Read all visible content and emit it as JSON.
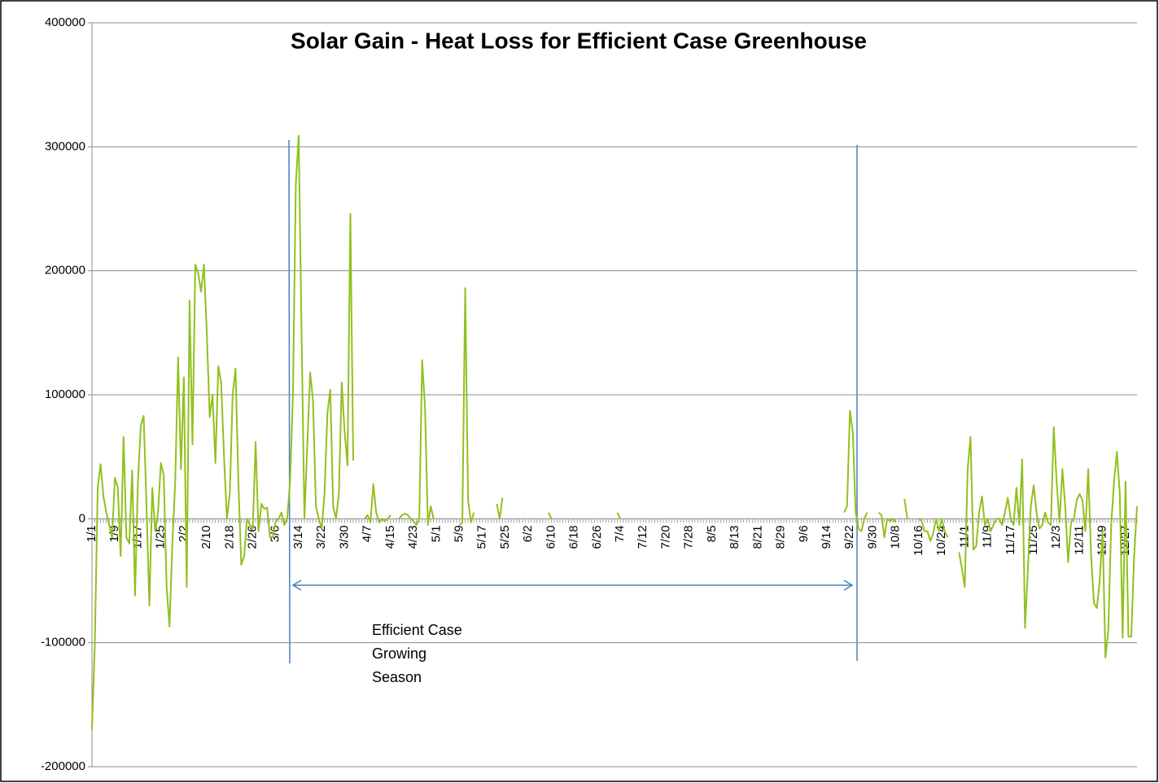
{
  "chart_data": {
    "type": "line",
    "title": "Solar Gain - Heat Loss for Efficient Case Greenhouse",
    "annotations": [
      "Efficient Case",
      "Growing",
      "Season"
    ],
    "categories": [
      "1/1",
      null,
      null,
      null,
      null,
      null,
      null,
      null,
      "1/9",
      null,
      null,
      null,
      null,
      null,
      null,
      null,
      "1/17",
      null,
      null,
      null,
      null,
      null,
      null,
      null,
      "1/25",
      null,
      null,
      null,
      null,
      null,
      null,
      null,
      "2/2",
      null,
      null,
      null,
      null,
      null,
      null,
      null,
      "2/10",
      null,
      null,
      null,
      null,
      null,
      null,
      null,
      "2/18",
      null,
      null,
      null,
      null,
      null,
      null,
      null,
      "2/26",
      null,
      null,
      null,
      null,
      null,
      null,
      null,
      "3/6",
      null,
      null,
      null,
      null,
      null,
      null,
      null,
      "3/14",
      null,
      null,
      null,
      null,
      null,
      null,
      null,
      "3/22",
      null,
      null,
      null,
      null,
      null,
      null,
      null,
      "3/30",
      null,
      null,
      null,
      null,
      null,
      null,
      null,
      "4/7",
      null,
      null,
      null,
      null,
      null,
      null,
      null,
      "4/15",
      null,
      null,
      null,
      null,
      null,
      null,
      null,
      "4/23",
      null,
      null,
      null,
      null,
      null,
      null,
      null,
      "5/1",
      null,
      null,
      null,
      null,
      null,
      null,
      null,
      "5/9",
      null,
      null,
      null,
      null,
      null,
      null,
      null,
      "5/17",
      null,
      null,
      null,
      null,
      null,
      null,
      null,
      "5/25",
      null,
      null,
      null,
      null,
      null,
      null,
      null,
      "6/2",
      null,
      null,
      null,
      null,
      null,
      null,
      null,
      "6/10",
      null,
      null,
      null,
      null,
      null,
      null,
      null,
      "6/18",
      null,
      null,
      null,
      null,
      null,
      null,
      null,
      "6/26",
      null,
      null,
      null,
      null,
      null,
      null,
      null,
      "7/4",
      null,
      null,
      null,
      null,
      null,
      null,
      null,
      "7/12",
      null,
      null,
      null,
      null,
      null,
      null,
      null,
      "7/20",
      null,
      null,
      null,
      null,
      null,
      null,
      null,
      "7/28",
      null,
      null,
      null,
      null,
      null,
      null,
      null,
      "8/5",
      null,
      null,
      null,
      null,
      null,
      null,
      null,
      "8/13",
      null,
      null,
      null,
      null,
      null,
      null,
      null,
      "8/21",
      null,
      null,
      null,
      null,
      null,
      null,
      null,
      "8/29",
      null,
      null,
      null,
      null,
      null,
      null,
      null,
      "9/6",
      null,
      null,
      null,
      null,
      null,
      null,
      null,
      "9/14",
      null,
      null,
      null,
      null,
      null,
      null,
      null,
      "9/22",
      null,
      null,
      null,
      null,
      null,
      null,
      null,
      "9/30",
      null,
      null,
      null,
      null,
      null,
      null,
      null,
      "10/8",
      null,
      null,
      null,
      null,
      null,
      null,
      null,
      "10/16",
      null,
      null,
      null,
      null,
      null,
      null,
      null,
      "10/24",
      null,
      null,
      null,
      null,
      null,
      null,
      null,
      "11/1",
      null,
      null,
      null,
      null,
      null,
      null,
      null,
      "11/9",
      null,
      null,
      null,
      null,
      null,
      null,
      null,
      "11/17",
      null,
      null,
      null,
      null,
      null,
      null,
      null,
      "11/25",
      null,
      null,
      null,
      null,
      null,
      null,
      null,
      "12/3",
      null,
      null,
      null,
      null,
      null,
      null,
      null,
      "12/11",
      null,
      null,
      null,
      null,
      null,
      null,
      null,
      "12/19",
      null,
      null,
      null,
      null,
      null,
      null,
      null,
      "12/27",
      null,
      null,
      null,
      null
    ],
    "series": [
      {
        "color": "#92c01f",
        "values": [
          -170000,
          -100000,
          25000,
          44000,
          18000,
          5000,
          -5000,
          -15000,
          33000,
          25000,
          -30000,
          66000,
          -15000,
          -20000,
          39000,
          -62000,
          30000,
          75000,
          83000,
          10000,
          -70000,
          25000,
          -10000,
          5000,
          45000,
          35000,
          -55000,
          -87000,
          -20000,
          30000,
          130000,
          40000,
          114000,
          -55000,
          176000,
          60000,
          205000,
          198000,
          183000,
          205000,
          150000,
          82000,
          100000,
          45000,
          123000,
          110000,
          50000,
          0,
          20000,
          100000,
          121000,
          30000,
          -37000,
          -30000,
          0,
          -5000,
          -8000,
          62000,
          -10000,
          12000,
          8000,
          9000,
          -15000,
          -15000,
          -2000,
          0,
          5000,
          -5000,
          0,
          30000,
          100000,
          270000,
          309000,
          150000,
          0,
          60000,
          118000,
          95000,
          10000,
          0,
          -8000,
          20000,
          85000,
          104000,
          10000,
          0,
          20000,
          110000,
          70000,
          43000,
          246000,
          47000,
          null,
          null,
          null,
          0,
          3000,
          -3000,
          28000,
          5000,
          -3000,
          0,
          -2000,
          0,
          3000,
          null,
          null,
          0,
          3000,
          4000,
          3000,
          0,
          -2000,
          -5000,
          0,
          128000,
          90000,
          -5000,
          10000,
          0,
          null,
          null,
          null,
          null,
          null,
          null,
          null,
          null,
          -5000,
          -3000,
          186000,
          15000,
          -3000,
          5000,
          null,
          null,
          null,
          null,
          null,
          null,
          null,
          12000,
          0,
          17000,
          null,
          null,
          null,
          null,
          null,
          null,
          null,
          null,
          null,
          null,
          null,
          null,
          null,
          null,
          null,
          5000,
          0,
          null,
          null,
          null,
          null,
          null,
          null,
          null,
          null,
          null,
          null,
          null,
          null,
          null,
          null,
          null,
          null,
          null,
          null,
          null,
          null,
          null,
          null,
          5000,
          0,
          null,
          null,
          null,
          null,
          null,
          null,
          null,
          null,
          null,
          null,
          null,
          null,
          null,
          null,
          null,
          null,
          null,
          null,
          null,
          null,
          null,
          null,
          null,
          null,
          null,
          null,
          null,
          null,
          null,
          null,
          null,
          null,
          null,
          null,
          null,
          null,
          null,
          null,
          null,
          null,
          null,
          null,
          null,
          null,
          null,
          null,
          null,
          null,
          null,
          null,
          null,
          null,
          null,
          null,
          null,
          null,
          null,
          null,
          null,
          null,
          null,
          null,
          null,
          null,
          null,
          null,
          null,
          null,
          null,
          null,
          null,
          null,
          null,
          null,
          null,
          null,
          null,
          5000,
          10000,
          87000,
          70000,
          5000,
          -8000,
          -10000,
          0,
          5000,
          null,
          null,
          null,
          5000,
          3000,
          -15000,
          0,
          -2000,
          0,
          -3000,
          null,
          null,
          16000,
          0,
          null,
          null,
          null,
          0,
          -2000,
          -10000,
          -10000,
          -18000,
          -12000,
          0,
          -10000,
          0,
          -10000,
          -15000,
          null,
          null,
          null,
          -27000,
          -40000,
          -55000,
          40000,
          66000,
          -25000,
          -22000,
          5000,
          18000,
          -5000,
          0,
          -10000,
          -5000,
          0,
          0,
          -5000,
          5000,
          17000,
          0,
          -5000,
          25000,
          -5000,
          48000,
          -88000,
          -40000,
          10000,
          27000,
          5000,
          -8000,
          -5000,
          5000,
          -3000,
          -5000,
          74000,
          30000,
          -3000,
          40000,
          10000,
          -35000,
          -3000,
          0,
          15000,
          20000,
          15000,
          -10000,
          40000,
          -30000,
          -68000,
          -72000,
          -50000,
          -10000,
          -112000,
          -90000,
          -5000,
          30000,
          54000,
          20000,
          -96000,
          30000,
          -95000,
          -95000,
          -30000,
          10000
        ]
      }
    ],
    "ylim": [
      -200000,
      400000
    ],
    "yticks": [
      -200000,
      -100000,
      0,
      100000,
      200000,
      300000,
      400000
    ],
    "grid": true
  }
}
